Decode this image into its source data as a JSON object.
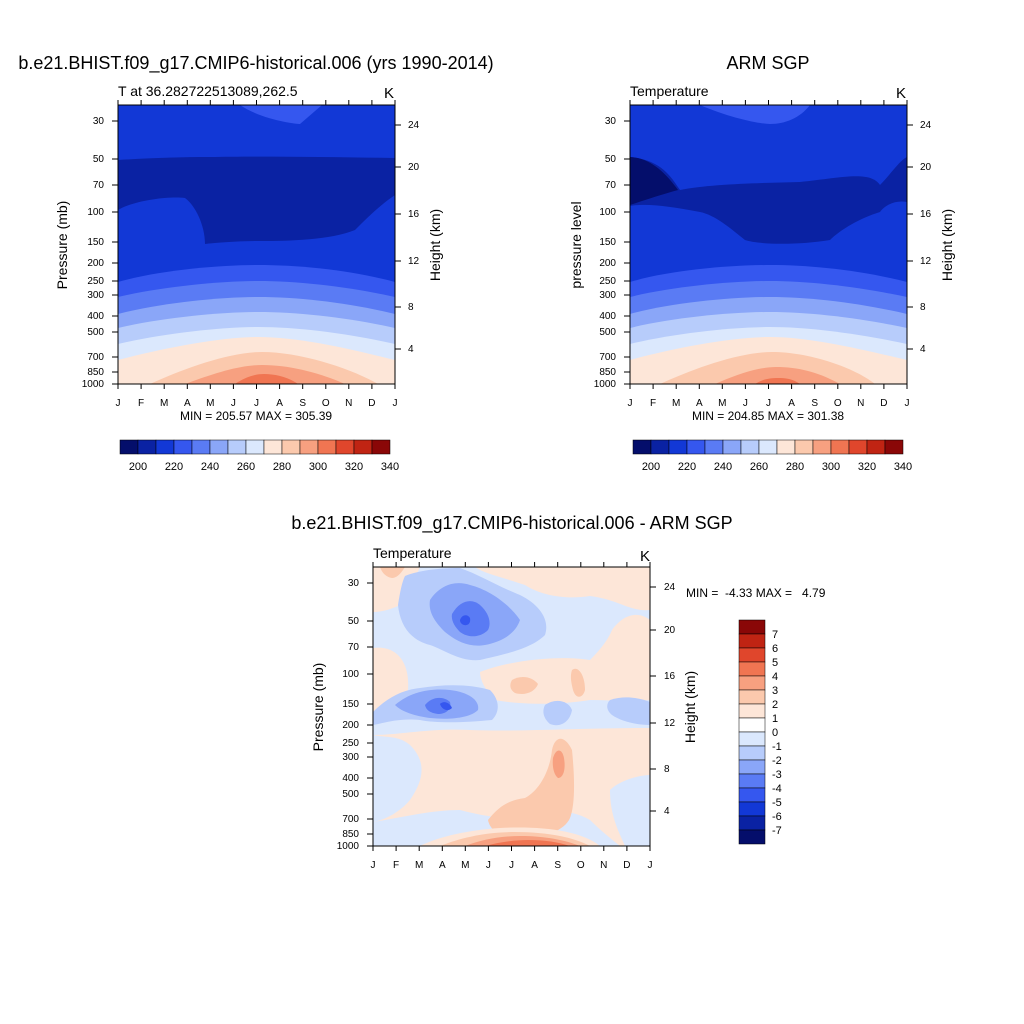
{
  "chart_data": [
    {
      "type": "heatmap",
      "title": "b.e21.BHIST.f09_g17.CMIP6-historical.006 (yrs 1990-2014)",
      "subtitle_left": "T at 36.282722513089,262.5",
      "units": "K",
      "ylabel": "Pressure (mb)",
      "ylabel_right": "Height (km)",
      "x_ticks": [
        "J",
        "F",
        "M",
        "A",
        "M",
        "J",
        "J",
        "A",
        "S",
        "O",
        "N",
        "D",
        "J"
      ],
      "y_ticks": [
        "30",
        "50",
        "70",
        "100",
        "150",
        "200",
        "250",
        "300",
        "400",
        "500",
        "700",
        "850",
        "1000"
      ],
      "y_ticks_right": [
        "24",
        "20",
        "16",
        "12",
        "8",
        "4"
      ],
      "stats_text": "MIN = 205.57 MAX = 305.39",
      "colorbar_labels": [
        "200",
        "220",
        "240",
        "260",
        "280",
        "300",
        "320",
        "340"
      ],
      "colorbar_colors": [
        "#040e6b",
        "#0a22a3",
        "#1238d6",
        "#3557ef",
        "#5a7bf4",
        "#8aa6f8",
        "#b7ccfb",
        "#dbe8fd",
        "#fde6d8",
        "#fbc9ad",
        "#f7a080",
        "#f07552",
        "#e0462c",
        "#c02413",
        "#8a0707"
      ],
      "value_range": [
        205.57,
        305.39
      ]
    },
    {
      "type": "heatmap",
      "title": "ARM SGP",
      "subtitle_left": "Temperature",
      "units": "K",
      "ylabel": "pressure level",
      "ylabel_right": "Height (km)",
      "x_ticks": [
        "J",
        "F",
        "M",
        "A",
        "M",
        "J",
        "J",
        "A",
        "S",
        "O",
        "N",
        "D",
        "J"
      ],
      "y_ticks": [
        "30",
        "50",
        "70",
        "100",
        "150",
        "200",
        "250",
        "300",
        "400",
        "500",
        "700",
        "850",
        "1000"
      ],
      "y_ticks_right": [
        "24",
        "20",
        "16",
        "12",
        "8",
        "4"
      ],
      "stats_text": "MIN = 204.85 MAX = 301.38",
      "colorbar_labels": [
        "200",
        "220",
        "240",
        "260",
        "280",
        "300",
        "320",
        "340"
      ],
      "colorbar_colors": [
        "#040e6b",
        "#0a22a3",
        "#1238d6",
        "#3557ef",
        "#5a7bf4",
        "#8aa6f8",
        "#b7ccfb",
        "#dbe8fd",
        "#fde6d8",
        "#fbc9ad",
        "#f7a080",
        "#f07552",
        "#e0462c",
        "#c02413",
        "#8a0707"
      ],
      "value_range": [
        204.85,
        301.38
      ]
    },
    {
      "type": "heatmap",
      "title": "b.e21.BHIST.f09_g17.CMIP6-historical.006 - ARM SGP",
      "subtitle_left": "Temperature",
      "units": "K",
      "ylabel": "Pressure (mb)",
      "ylabel_right": "Height (km)",
      "x_ticks": [
        "J",
        "F",
        "M",
        "A",
        "M",
        "J",
        "J",
        "A",
        "S",
        "O",
        "N",
        "D",
        "J"
      ],
      "y_ticks": [
        "30",
        "50",
        "70",
        "100",
        "150",
        "200",
        "250",
        "300",
        "400",
        "500",
        "700",
        "850",
        "1000"
      ],
      "y_ticks_right": [
        "24",
        "20",
        "16",
        "12",
        "8",
        "4"
      ],
      "stats_text": "MIN =  -4.33 MAX =   4.79",
      "colorbar_labels": [
        "7",
        "6",
        "5",
        "4",
        "3",
        "2",
        "1",
        "0",
        "-1",
        "-2",
        "-3",
        "-4",
        "-5",
        "-6",
        "-7"
      ],
      "colorbar_colors": [
        "#8a0707",
        "#c02413",
        "#e0462c",
        "#f07552",
        "#f7a080",
        "#fbc9ad",
        "#fde6d8",
        "#ffffff",
        "#dbe8fd",
        "#b7ccfb",
        "#8aa6f8",
        "#5a7bf4",
        "#3557ef",
        "#1238d6",
        "#0a22a3",
        "#040e6b"
      ],
      "value_range": [
        -4.33,
        4.79
      ]
    }
  ]
}
